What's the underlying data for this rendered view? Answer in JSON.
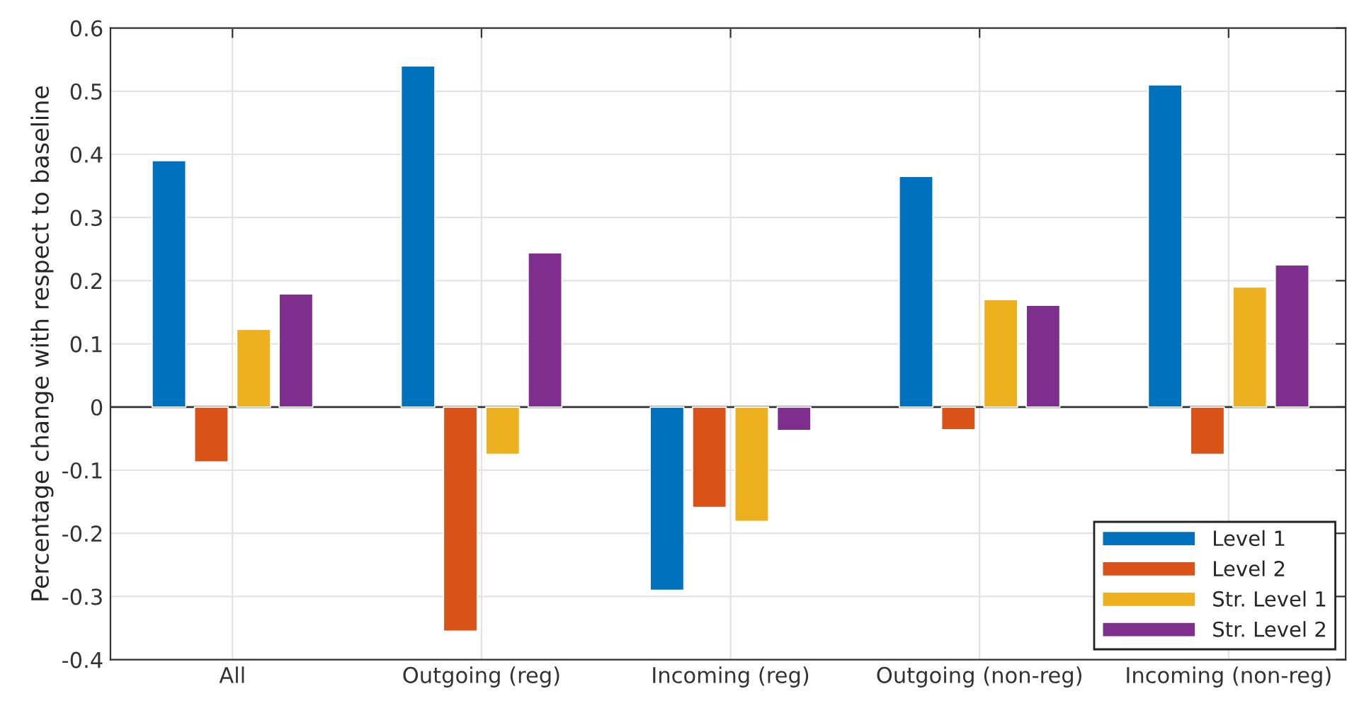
{
  "chart_data": {
    "type": "bar",
    "ylabel": "Percentage change with respect to baseline",
    "categories": [
      "All",
      "Outgoing (reg)",
      "Incoming (reg)",
      "Outgoing (non-reg)",
      "Incoming (non-reg)"
    ],
    "series": [
      {
        "name": "Level 1",
        "color": "#0072bd",
        "values": [
          0.39,
          0.54,
          -0.29,
          0.365,
          0.51
        ]
      },
      {
        "name": "Level 2",
        "color": "#d95319",
        "values": [
          -0.087,
          -0.355,
          -0.159,
          -0.036,
          -0.075
        ]
      },
      {
        "name": "Str. Level 1",
        "color": "#edb120",
        "values": [
          0.123,
          -0.075,
          -0.181,
          0.17,
          0.19
        ]
      },
      {
        "name": "Str. Level 2",
        "color": "#7e2f8e",
        "values": [
          0.179,
          0.244,
          -0.037,
          0.161,
          0.225
        ]
      }
    ],
    "ylim": [
      -0.4,
      0.6
    ],
    "yticks": [
      {
        "value": -0.4,
        "label": "-0.4"
      },
      {
        "value": -0.3,
        "label": "-0.3"
      },
      {
        "value": -0.2,
        "label": "-0.2"
      },
      {
        "value": -0.1,
        "label": "-0.1"
      },
      0,
      0.1,
      0.2,
      0.3,
      0.4,
      0.5,
      0.6
    ],
    "grid": true,
    "legend": "bottom right"
  }
}
